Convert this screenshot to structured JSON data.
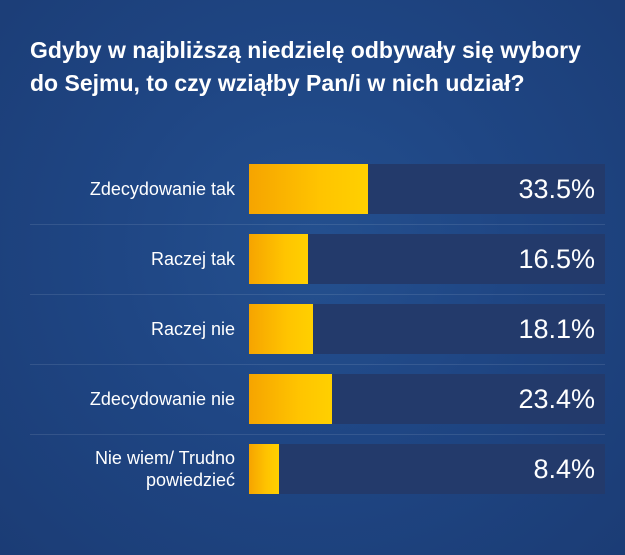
{
  "chart_data": {
    "type": "bar",
    "orientation": "horizontal",
    "title": "Gdyby w najbliższą niedzielę odbywały się wybory do Sejmu, to czy wziąłby Pan/i w nich udział?",
    "categories": [
      "Zdecydowanie tak",
      "Raczej tak",
      "Raczej nie",
      "Zdecydowanie nie",
      "Nie wiem/ Trudno powiedzieć"
    ],
    "values": [
      33.5,
      16.5,
      18.1,
      23.4,
      8.4
    ],
    "value_labels": [
      "33.5%",
      "16.5%",
      "18.1%",
      "23.4%",
      "8.4%"
    ],
    "unit": "%",
    "xlim": [
      0,
      100
    ],
    "grid": false,
    "legend": "none",
    "colors": {
      "bar": "#ffc400",
      "track": "#233a6b",
      "background": "#1f4684",
      "text": "#ffffff"
    }
  }
}
